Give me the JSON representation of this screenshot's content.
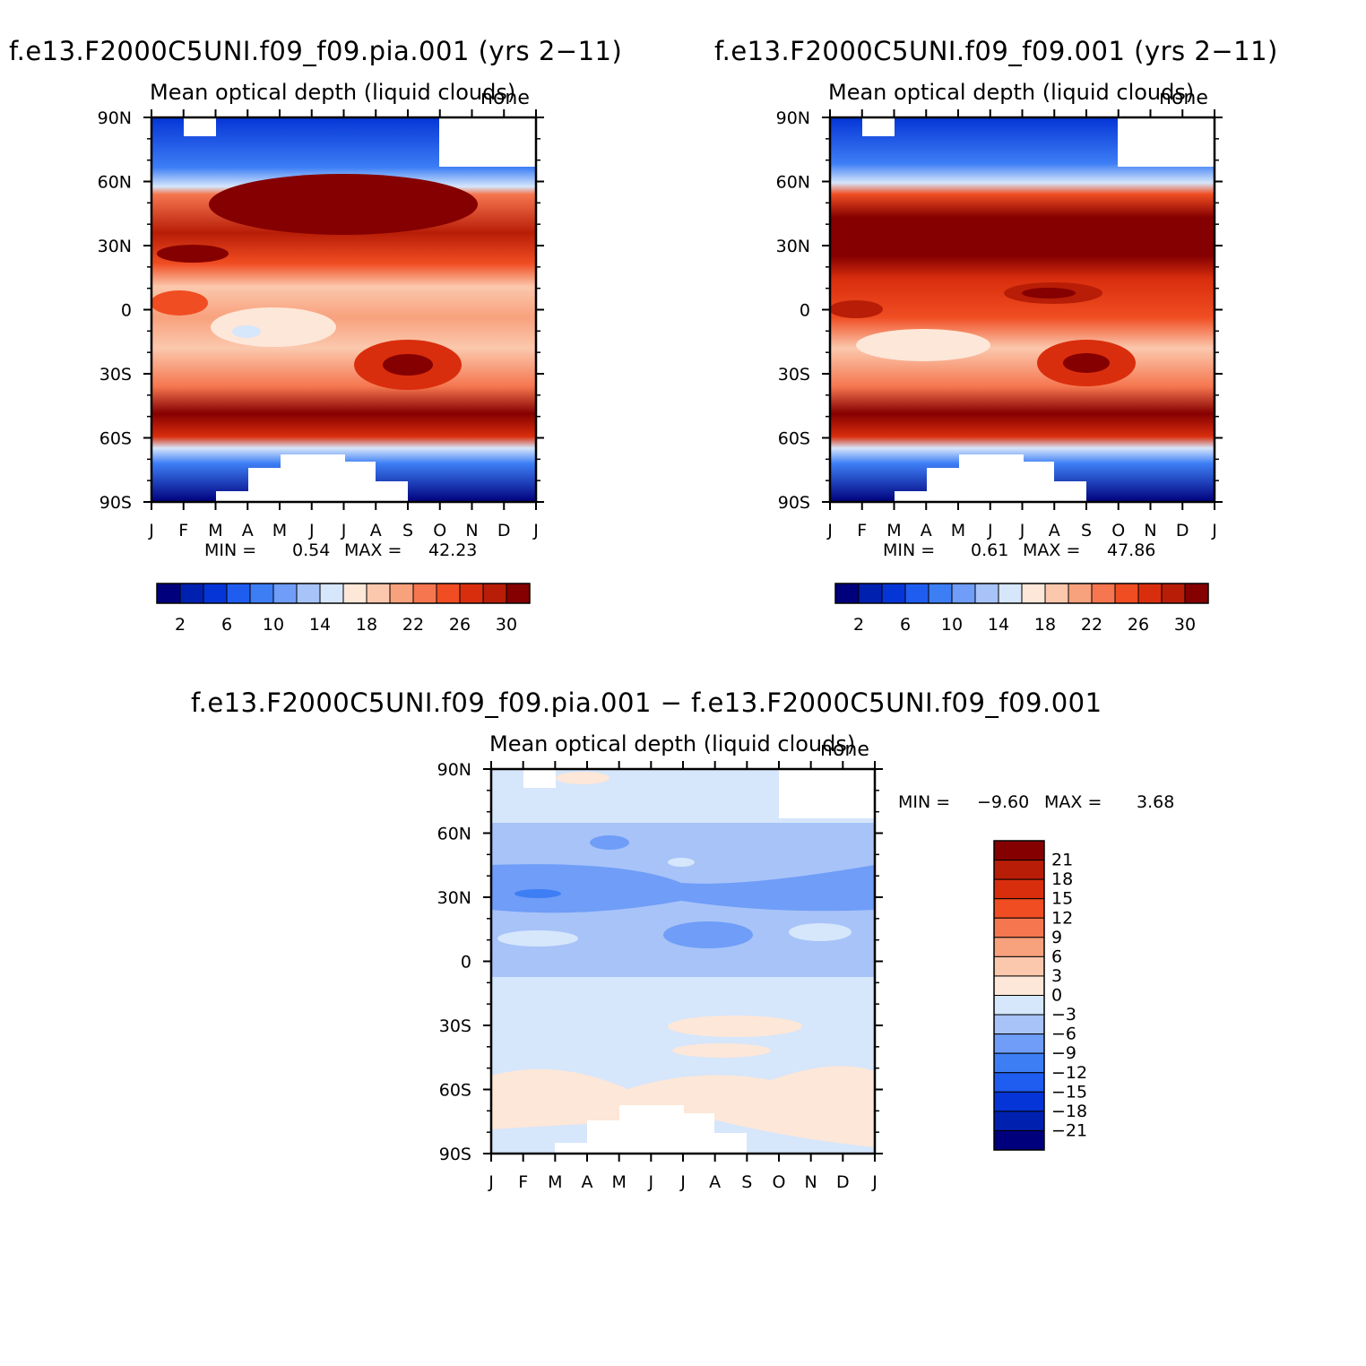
{
  "panels": [
    {
      "title": "f.e13.F2000C5UNI.f09_f09.pia.001 (yrs 2−11)",
      "subtitle": "Mean optical depth (liquid clouds)",
      "corner": "none",
      "min_label": "MIN =",
      "min_value": "0.54",
      "max_label": "MAX =",
      "max_value": "42.23"
    },
    {
      "title": "f.e13.F2000C5UNI.f09_f09.001 (yrs 2−11)",
      "subtitle": "Mean optical depth (liquid clouds)",
      "corner": "none",
      "min_label": "MIN =",
      "min_value": "0.61",
      "max_label": "MAX =",
      "max_value": "47.86"
    },
    {
      "title": "f.e13.F2000C5UNI.f09_f09.pia.001 − f.e13.F2000C5UNI.f09_f09.001",
      "subtitle": "Mean optical depth (liquid clouds)",
      "corner": "none",
      "min_label": "MIN =",
      "min_value": "−9.60",
      "max_label": "MAX =",
      "max_value": "3.68"
    }
  ],
  "chart_data": [
    {
      "type": "heatmap",
      "title": "f.e13.F2000C5UNI.f09_f09.pia.001 (yrs 2-11)",
      "subtitle": "Mean optical depth (liquid clouds)",
      "x_ticks": [
        "J",
        "F",
        "M",
        "A",
        "M",
        "J",
        "J",
        "A",
        "S",
        "O",
        "N",
        "D",
        "J"
      ],
      "y_ticks": [
        "90N",
        "60N",
        "30N",
        "0",
        "30S",
        "60S",
        "90S"
      ],
      "y_values": [
        90,
        60,
        30,
        0,
        -30,
        -60,
        -90
      ],
      "colorbar_levels": [
        2,
        6,
        10,
        14,
        18,
        22,
        26,
        30
      ],
      "colorbar_boundaries": [
        0,
        2,
        4,
        6,
        8,
        10,
        12,
        14,
        16,
        18,
        20,
        22,
        24,
        26,
        28,
        30,
        32
      ],
      "colors": [
        "#00007c",
        "#0021b0",
        "#0535d6",
        "#1f5cf0",
        "#3d7ef5",
        "#6f9df7",
        "#a7c3f8",
        "#d6e6fb",
        "#fde7d8",
        "#fbc8ad",
        "#f8a17d",
        "#f5764f",
        "#f04d22",
        "#d92e0d",
        "#b81d07",
        "#850000"
      ],
      "min": 0.54,
      "max": 42.23
    },
    {
      "type": "heatmap",
      "title": "f.e13.F2000C5UNI.f09_f09.001 (yrs 2-11)",
      "subtitle": "Mean optical depth (liquid clouds)",
      "x_ticks": [
        "J",
        "F",
        "M",
        "A",
        "M",
        "J",
        "J",
        "A",
        "S",
        "O",
        "N",
        "D",
        "J"
      ],
      "y_ticks": [
        "90N",
        "60N",
        "30N",
        "0",
        "30S",
        "60S",
        "90S"
      ],
      "y_values": [
        90,
        60,
        30,
        0,
        -30,
        -60,
        -90
      ],
      "colorbar_levels": [
        2,
        6,
        10,
        14,
        18,
        22,
        26,
        30
      ],
      "colorbar_boundaries": [
        0,
        2,
        4,
        6,
        8,
        10,
        12,
        14,
        16,
        18,
        20,
        22,
        24,
        26,
        28,
        30,
        32
      ],
      "colors": [
        "#00007c",
        "#0021b0",
        "#0535d6",
        "#1f5cf0",
        "#3d7ef5",
        "#6f9df7",
        "#a7c3f8",
        "#d6e6fb",
        "#fde7d8",
        "#fbc8ad",
        "#f8a17d",
        "#f5764f",
        "#f04d22",
        "#d92e0d",
        "#b81d07",
        "#850000"
      ],
      "min": 0.61,
      "max": 47.86
    },
    {
      "type": "heatmap",
      "title": "f.e13.F2000C5UNI.f09_f09.pia.001 - f.e13.F2000C5UNI.f09_f09.001",
      "subtitle": "Mean optical depth (liquid clouds)",
      "x_ticks": [
        "J",
        "F",
        "M",
        "A",
        "M",
        "J",
        "J",
        "A",
        "S",
        "O",
        "N",
        "D",
        "J"
      ],
      "y_ticks": [
        "90N",
        "60N",
        "30N",
        "0",
        "30S",
        "60S",
        "90S"
      ],
      "y_values": [
        90,
        60,
        30,
        0,
        -30,
        -60,
        -90
      ],
      "colorbar_levels": [
        "21",
        "18",
        "15",
        "12",
        "9",
        "6",
        "3",
        "0",
        "−3",
        "−6",
        "−9",
        "−12",
        "−15",
        "−18",
        "−21"
      ],
      "colors_top_to_bottom": [
        "#850000",
        "#b81d07",
        "#d92e0d",
        "#f04d22",
        "#f5764f",
        "#f8a17d",
        "#fbc8ad",
        "#fde7d8",
        "#d6e6fb",
        "#a7c3f8",
        "#6f9df7",
        "#3d7ef5",
        "#1f5cf0",
        "#0535d6",
        "#0021b0",
        "#00007c"
      ],
      "min": -9.6,
      "max": 3.68
    }
  ]
}
